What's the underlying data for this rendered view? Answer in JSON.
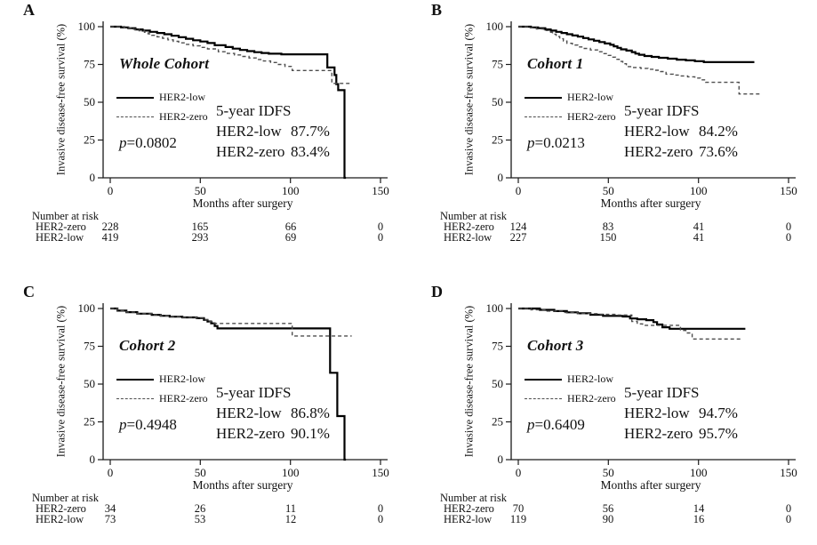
{
  "figure": {
    "background": "#ffffff",
    "axis_color": "#1a1a1a",
    "line_colors": {
      "her2_low": "#000000",
      "her2_zero": "#4d4d4d"
    }
  },
  "chart_data": [
    {
      "panel_letter": "A",
      "type": "line",
      "subtype": "kaplan-meier-step",
      "title": "Whole Cohort",
      "xlabel": "Months after surgery",
      "ylabel": "Invasive disease-free survival (%)",
      "xlim": [
        0,
        150
      ],
      "ylim": [
        0,
        100
      ],
      "x_ticks": [
        0,
        50,
        100,
        150
      ],
      "y_ticks": [
        0,
        25,
        50,
        75,
        100
      ],
      "legend": [
        {
          "label": "HER2-low",
          "style": "solid"
        },
        {
          "label": "HER2-zero",
          "style": "dashed"
        }
      ],
      "p_italic": "p",
      "p_rest": "=0.0802",
      "annotation": {
        "title": "5-year IDFS",
        "lines": [
          {
            "label": "HER2-low",
            "value": "87.7%"
          },
          {
            "label": "HER2-zero",
            "value": "83.4%"
          }
        ]
      },
      "series": [
        {
          "name": "HER2-low",
          "style": "solid",
          "points": [
            [
              0,
              100
            ],
            [
              6,
              99.5
            ],
            [
              10,
              99
            ],
            [
              14,
              98.2
            ],
            [
              18,
              97.4
            ],
            [
              22,
              96.6
            ],
            [
              26,
              95.8
            ],
            [
              30,
              95
            ],
            [
              34,
              94
            ],
            [
              38,
              93
            ],
            [
              42,
              92
            ],
            [
              46,
              91
            ],
            [
              50,
              90.2
            ],
            [
              54,
              89.2
            ],
            [
              58,
              87.7
            ],
            [
              64,
              86.5
            ],
            [
              68,
              85.5
            ],
            [
              72,
              84.6
            ],
            [
              76,
              83.8
            ],
            [
              80,
              83.1
            ],
            [
              84,
              82.6
            ],
            [
              88,
              82.1
            ],
            [
              95,
              81.7
            ],
            [
              120.5,
              73
            ],
            [
              124.5,
              68
            ],
            [
              125.5,
              62
            ],
            [
              126.5,
              58
            ],
            [
              130,
              0
            ],
            [
              130.8,
              0
            ]
          ]
        },
        {
          "name": "HER2-zero",
          "style": "dashed",
          "points": [
            [
              0,
              100
            ],
            [
              8,
              99.3
            ],
            [
              13,
              98.3
            ],
            [
              16,
              97.3
            ],
            [
              19,
              96.3
            ],
            [
              21,
              95.3
            ],
            [
              23,
              94.3
            ],
            [
              26,
              93.3
            ],
            [
              29,
              92.3
            ],
            [
              32,
              91.3
            ],
            [
              35,
              90.3
            ],
            [
              38,
              89.3
            ],
            [
              42,
              88.3
            ],
            [
              46,
              87.3
            ],
            [
              50,
              86.3
            ],
            [
              54,
              85.3
            ],
            [
              60,
              83.4
            ],
            [
              65,
              82.3
            ],
            [
              69,
              81.3
            ],
            [
              73,
              80.3
            ],
            [
              77,
              79.3
            ],
            [
              81,
              78.3
            ],
            [
              85,
              77.3
            ],
            [
              89,
              76.3
            ],
            [
              93,
              75
            ],
            [
              97,
              73.7
            ],
            [
              101,
              71
            ],
            [
              123,
              62.5
            ],
            [
              134,
              62.5
            ]
          ]
        }
      ],
      "number_at_risk": {
        "header": "Number at risk",
        "rows": [
          {
            "label": "HER2-zero",
            "values": [
              "228",
              "165",
              "66",
              "0"
            ]
          },
          {
            "label": "HER2-low",
            "values": [
              "419",
              "293",
              "69",
              "0"
            ]
          }
        ]
      }
    },
    {
      "panel_letter": "B",
      "type": "line",
      "subtype": "kaplan-meier-step",
      "title": "Cohort 1",
      "xlabel": "Months after surgery",
      "ylabel": "Invasive disease-free survival (%)",
      "xlim": [
        0,
        150
      ],
      "ylim": [
        0,
        100
      ],
      "x_ticks": [
        0,
        50,
        100,
        150
      ],
      "y_ticks": [
        0,
        25,
        50,
        75,
        100
      ],
      "legend": [
        {
          "label": "HER2-low",
          "style": "solid"
        },
        {
          "label": "HER2-zero",
          "style": "dashed"
        }
      ],
      "p_italic": "p",
      "p_rest": "=0.0213",
      "annotation": {
        "title": "5-year IDFS",
        "lines": [
          {
            "label": "HER2-low",
            "value": "84.2%"
          },
          {
            "label": "HER2-zero",
            "value": "73.6%"
          }
        ]
      },
      "series": [
        {
          "name": "HER2-low",
          "style": "solid",
          "points": [
            [
              0,
              100
            ],
            [
              7,
              99.5
            ],
            [
              11,
              99
            ],
            [
              15,
              98.2
            ],
            [
              18,
              97.4
            ],
            [
              21,
              96.6
            ],
            [
              24,
              95.8
            ],
            [
              27,
              95
            ],
            [
              30,
              94.2
            ],
            [
              33,
              93.4
            ],
            [
              36,
              92.5
            ],
            [
              39,
              91.6
            ],
            [
              42,
              90.7
            ],
            [
              45,
              89.8
            ],
            [
              48,
              88.9
            ],
            [
              51,
              88
            ],
            [
              53,
              87
            ],
            [
              55,
              86
            ],
            [
              57,
              85
            ],
            [
              60,
              84.2
            ],
            [
              63,
              83.2
            ],
            [
              65,
              82.2
            ],
            [
              67,
              81.4
            ],
            [
              70,
              80.6
            ],
            [
              74,
              80
            ],
            [
              78,
              79.4
            ],
            [
              83,
              78.8
            ],
            [
              88,
              78.2
            ],
            [
              93,
              77.7
            ],
            [
              98,
              77.2
            ],
            [
              103,
              76.5
            ],
            [
              131,
              76.5
            ]
          ]
        },
        {
          "name": "HER2-zero",
          "style": "dashed",
          "points": [
            [
              0,
              100
            ],
            [
              6,
              99.3
            ],
            [
              10,
              98.5
            ],
            [
              14,
              97.5
            ],
            [
              17,
              96.3
            ],
            [
              19,
              95
            ],
            [
              21,
              93.5
            ],
            [
              23,
              92
            ],
            [
              25,
              90.5
            ],
            [
              27,
              89
            ],
            [
              30,
              87.8
            ],
            [
              33,
              86.6
            ],
            [
              36,
              85.6
            ],
            [
              40,
              84.6
            ],
            [
              44,
              83.4
            ],
            [
              47,
              82.2
            ],
            [
              50,
              81
            ],
            [
              52,
              79.8
            ],
            [
              54,
              78.4
            ],
            [
              56,
              77
            ],
            [
              58,
              75.5
            ],
            [
              60,
              73.6
            ],
            [
              64,
              73
            ],
            [
              68,
              72.4
            ],
            [
              72,
              71.8
            ],
            [
              76,
              71.2
            ],
            [
              79,
              70.3
            ],
            [
              82,
              68.6
            ],
            [
              86,
              68
            ],
            [
              90,
              67.4
            ],
            [
              94,
              66.8
            ],
            [
              98,
              66
            ],
            [
              101,
              64.8
            ],
            [
              104,
              63.2
            ],
            [
              122.5,
              55.5
            ],
            [
              134,
              55.5
            ]
          ]
        }
      ],
      "number_at_risk": {
        "header": "Number at risk",
        "rows": [
          {
            "label": "HER2-zero",
            "values": [
              "124",
              "83",
              "41",
              "0"
            ]
          },
          {
            "label": "HER2-low",
            "values": [
              "227",
              "150",
              "41",
              "0"
            ]
          }
        ]
      }
    },
    {
      "panel_letter": "C",
      "type": "line",
      "subtype": "kaplan-meier-step",
      "title": "Cohort 2",
      "xlabel": "Months after surgery",
      "ylabel": "Invasive disease-free survival (%)",
      "xlim": [
        0,
        150
      ],
      "ylim": [
        0,
        100
      ],
      "x_ticks": [
        0,
        50,
        100,
        150
      ],
      "y_ticks": [
        0,
        25,
        50,
        75,
        100
      ],
      "legend": [
        {
          "label": "HER2-low",
          "style": "solid"
        },
        {
          "label": "HER2-zero",
          "style": "dashed"
        }
      ],
      "p_italic": "p",
      "p_rest": "=0.4948",
      "annotation": {
        "title": "5-year IDFS",
        "lines": [
          {
            "label": "HER2-low",
            "value": "86.8%"
          },
          {
            "label": "HER2-zero",
            "value": "90.1%"
          }
        ]
      },
      "series": [
        {
          "name": "HER2-low",
          "style": "solid",
          "points": [
            [
              0,
              100
            ],
            [
              4,
              98.6
            ],
            [
              9,
              97.6
            ],
            [
              15,
              96.6
            ],
            [
              23,
              95.8
            ],
            [
              28,
              95.2
            ],
            [
              33,
              94.6
            ],
            [
              40,
              94.1
            ],
            [
              48,
              93.6
            ],
            [
              52,
              92.5
            ],
            [
              54,
              91.4
            ],
            [
              56,
              90.2
            ],
            [
              58,
              88.4
            ],
            [
              59.5,
              86.8
            ],
            [
              122,
              57.5
            ],
            [
              126,
              28.8
            ],
            [
              130,
              0
            ],
            [
              130.8,
              0
            ]
          ]
        },
        {
          "name": "HER2-zero",
          "style": "dashed",
          "points": [
            [
              0,
              100
            ],
            [
              4,
              98.6
            ],
            [
              9,
              97.6
            ],
            [
              15,
              96.6
            ],
            [
              23,
              95.8
            ],
            [
              28,
              95.2
            ],
            [
              33,
              94.6
            ],
            [
              40,
              94.1
            ],
            [
              48,
              93.6
            ],
            [
              52,
              92.5
            ],
            [
              55,
              91.3
            ],
            [
              57,
              90.1
            ],
            [
              101,
              81.8
            ],
            [
              134,
              81.8
            ]
          ]
        }
      ],
      "number_at_risk": {
        "header": "Number at risk",
        "rows": [
          {
            "label": "HER2-zero",
            "values": [
              "34",
              "26",
              "11",
              "0"
            ]
          },
          {
            "label": "HER2-low",
            "values": [
              "73",
              "53",
              "12",
              "0"
            ]
          }
        ]
      }
    },
    {
      "panel_letter": "D",
      "type": "line",
      "subtype": "kaplan-meier-step",
      "title": "Cohort 3",
      "xlabel": "Months after surgery",
      "ylabel": "Invasive disease-free survival (%)",
      "xlim": [
        0,
        150
      ],
      "ylim": [
        0,
        100
      ],
      "x_ticks": [
        0,
        50,
        100,
        150
      ],
      "y_ticks": [
        0,
        25,
        50,
        75,
        100
      ],
      "legend": [
        {
          "label": "HER2-low",
          "style": "solid"
        },
        {
          "label": "HER2-zero",
          "style": "dashed"
        }
      ],
      "p_italic": "p",
      "p_rest": "=0.6409",
      "annotation": {
        "title": "5-year IDFS",
        "lines": [
          {
            "label": "HER2-low",
            "value": "94.7%"
          },
          {
            "label": "HER2-zero",
            "value": "95.7%"
          }
        ]
      },
      "series": [
        {
          "name": "HER2-low",
          "style": "solid",
          "points": [
            [
              0,
              100
            ],
            [
              12,
              99.1
            ],
            [
              20,
              98.3
            ],
            [
              27,
              97.5
            ],
            [
              33,
              96.8
            ],
            [
              40,
              95.9
            ],
            [
              47,
              95.1
            ],
            [
              58,
              94.7
            ],
            [
              62,
              93.4
            ],
            [
              66,
              92.9
            ],
            [
              71,
              92.3
            ],
            [
              75,
              91
            ],
            [
              77,
              89.4
            ],
            [
              80,
              87.6
            ],
            [
              84,
              86.6
            ],
            [
              126,
              86.6
            ]
          ]
        },
        {
          "name": "HER2-zero",
          "style": "dashed",
          "points": [
            [
              0,
              100
            ],
            [
              7,
              99.2
            ],
            [
              16,
              98.3
            ],
            [
              25,
              97.4
            ],
            [
              33,
              96.6
            ],
            [
              45,
              96.1
            ],
            [
              55,
              95.7
            ],
            [
              63,
              91.4
            ],
            [
              66,
              89.8
            ],
            [
              69,
              88.9
            ],
            [
              90,
              85.5
            ],
            [
              93,
              83.8
            ],
            [
              96.5,
              79.8
            ],
            [
              124,
              79.8
            ]
          ]
        }
      ],
      "number_at_risk": {
        "header": "Number at risk",
        "rows": [
          {
            "label": "HER2-zero",
            "values": [
              "70",
              "56",
              "14",
              "0"
            ]
          },
          {
            "label": "HER2-low",
            "values": [
              "119",
              "90",
              "16",
              "0"
            ]
          }
        ]
      }
    }
  ]
}
